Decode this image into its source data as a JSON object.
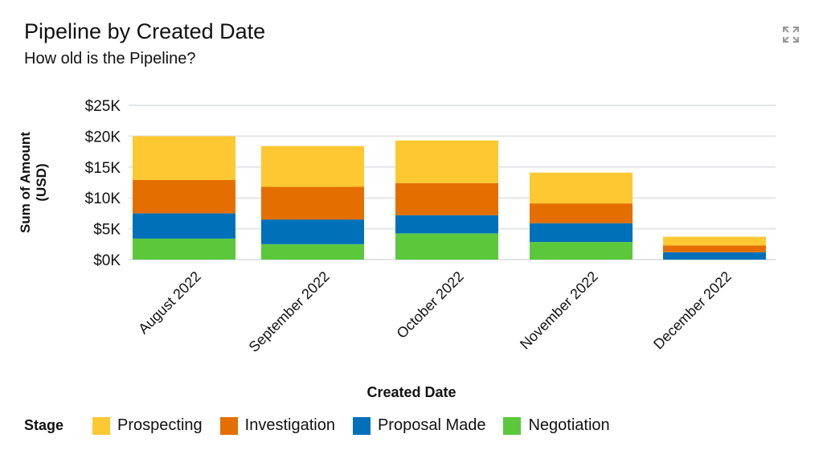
{
  "header": {
    "title": "Pipeline by Created Date",
    "subtitle": "How old is the Pipeline?",
    "expand_icon": "expand-icon"
  },
  "chart_data": {
    "type": "bar",
    "stacked": true,
    "title": "Pipeline by Created Date",
    "subtitle": "How old is the Pipeline?",
    "xlabel": "Created Date",
    "ylabel": "Sum of Amount (USD)",
    "ylabel_lines": [
      "Sum of Amount",
      "(USD)"
    ],
    "ylim": [
      0,
      25000
    ],
    "yticks": [
      0,
      5000,
      10000,
      15000,
      20000,
      25000
    ],
    "ytick_labels": [
      "$0K",
      "$5K",
      "$10K",
      "$15K",
      "$20K",
      "$25K"
    ],
    "grid": true,
    "categories": [
      "August 2022",
      "September 2022",
      "October 2022",
      "November 2022",
      "December 2022"
    ],
    "legend_title": "Stage",
    "legend_position": "bottom",
    "series": [
      {
        "name": "Negotiation",
        "color": "#5bc83c",
        "values": [
          3400,
          2500,
          4250,
          2850,
          0
        ]
      },
      {
        "name": "Proposal Made",
        "color": "#0070b8",
        "values": [
          4100,
          4000,
          2950,
          3050,
          1200
        ]
      },
      {
        "name": "Investigation",
        "color": "#e46f00",
        "values": [
          5400,
          5300,
          5200,
          3200,
          1100
        ]
      },
      {
        "name": "Prospecting",
        "color": "#fec832",
        "values": [
          7100,
          6600,
          6900,
          5000,
          1400
        ]
      }
    ],
    "legend_order": [
      "Prospecting",
      "Investigation",
      "Proposal Made",
      "Negotiation"
    ]
  }
}
